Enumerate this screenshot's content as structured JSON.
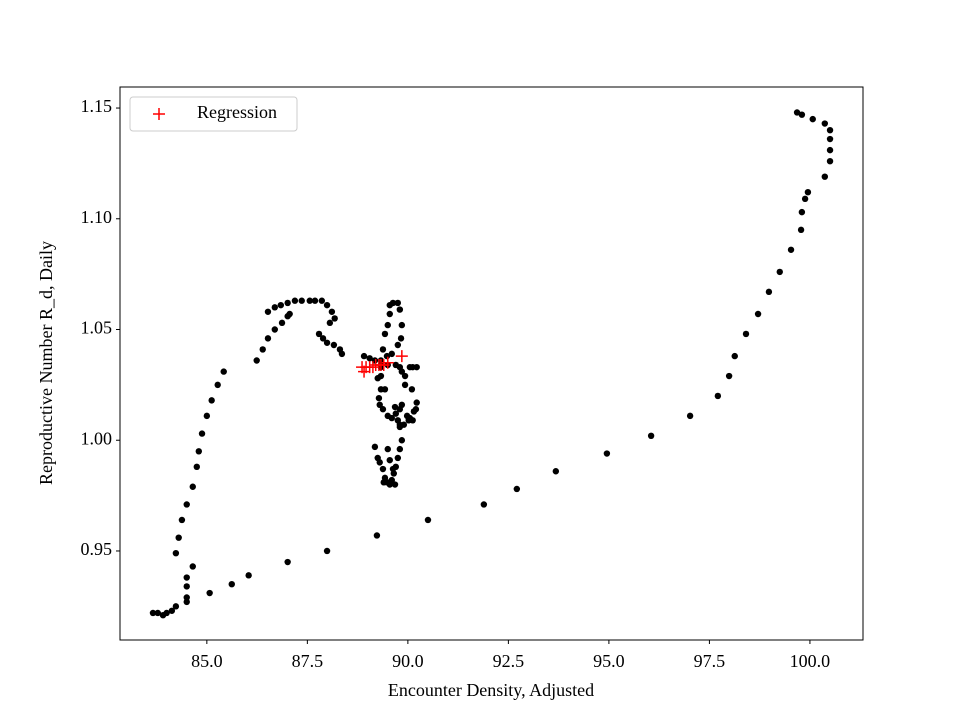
{
  "chart_data": {
    "type": "scatter",
    "xlabel": "Encounter Density, Adjusted",
    "ylabel": "Reproductive Number R_d, Daily",
    "xlim": [
      82.84,
      101.32
    ],
    "ylim": [
      0.9098,
      1.1595
    ],
    "xticks": [
      {
        "value": 85,
        "label": "85.0"
      },
      87.5,
      {
        "value": 90,
        "label": "90.0"
      },
      92.5,
      {
        "value": 95,
        "label": "95.0"
      },
      97.5,
      {
        "value": 100,
        "label": "100.0"
      }
    ],
    "yticks": [
      0.95,
      {
        "value": 1,
        "label": "1.00"
      },
      1.05,
      {
        "value": 1.1,
        "label": "1.10"
      },
      1.15
    ],
    "legend": "upper left",
    "series": [
      {
        "color": "#000000",
        "marker": "dot",
        "x": [
          83.66,
          83.78,
          83.91,
          84.0,
          84.13,
          84.23,
          84.5,
          84.5,
          84.5,
          84.5,
          84.65,
          85.07,
          85.62,
          86.04,
          87.01,
          87.99,
          89.23,
          90.5,
          91.89,
          92.71,
          93.68,
          94.95,
          96.05,
          97.02,
          97.71,
          97.99,
          98.13,
          98.41,
          98.71,
          98.98,
          99.25,
          99.53,
          99.78,
          99.8,
          99.88,
          99.95,
          100.37,
          100.5,
          100.5,
          100.5,
          100.5,
          100.37,
          100.07,
          99.8,
          99.68,
          84.23,
          84.3,
          84.38,
          84.5,
          84.65,
          84.75,
          84.8,
          84.88,
          85.0,
          85.12,
          85.27,
          85.42,
          86.24,
          86.39,
          86.52,
          86.69,
          86.87,
          87.01,
          87.06,
          86.52,
          86.69,
          86.84,
          87.01,
          87.19,
          87.36,
          87.56,
          87.69,
          87.86,
          87.99,
          88.11,
          88.18,
          88.06,
          87.79,
          87.89,
          87.99,
          88.16,
          88.31,
          88.36,
          88.91,
          89.05,
          89.18,
          89.33,
          89.48,
          89.6,
          89.75,
          89.83,
          89.85,
          89.8,
          89.75,
          89.63,
          89.55,
          89.55,
          89.5,
          89.43,
          89.38,
          89.33,
          89.25,
          89.33,
          89.28,
          89.3,
          89.38,
          89.5,
          89.6,
          89.7,
          89.8,
          89.85,
          89.98,
          90.05,
          90.12,
          90.2,
          90.22,
          90.1,
          89.93,
          89.85,
          89.8,
          89.7,
          89.5,
          89.33,
          89.33,
          89.43,
          89.68,
          89.75,
          89.8,
          89.85,
          89.8,
          89.75,
          89.7,
          89.65,
          89.6,
          89.55,
          89.48,
          89.43,
          89.38,
          89.3,
          89.25,
          89.18,
          89.5,
          89.55,
          89.63,
          89.4,
          89.68,
          89.8,
          89.9,
          90.02,
          90.15,
          89.93,
          90.05,
          90.12,
          90.22
        ],
        "values": [
          0.922,
          0.922,
          0.921,
          0.922,
          0.923,
          0.925,
          0.938,
          0.934,
          0.929,
          0.927,
          0.943,
          0.931,
          0.935,
          0.939,
          0.945,
          0.95,
          0.957,
          0.964,
          0.971,
          0.978,
          0.986,
          0.994,
          1.002,
          1.011,
          1.02,
          1.029,
          1.038,
          1.048,
          1.057,
          1.067,
          1.076,
          1.086,
          1.095,
          1.103,
          1.109,
          1.112,
          1.119,
          1.126,
          1.131,
          1.136,
          1.14,
          1.143,
          1.145,
          1.147,
          1.148,
          0.949,
          0.956,
          0.964,
          0.971,
          0.979,
          0.988,
          0.995,
          1.003,
          1.011,
          1.018,
          1.025,
          1.031,
          1.036,
          1.041,
          1.046,
          1.05,
          1.053,
          1.056,
          1.057,
          1.058,
          1.06,
          1.061,
          1.062,
          1.063,
          1.063,
          1.063,
          1.063,
          1.063,
          1.061,
          1.058,
          1.055,
          1.053,
          1.048,
          1.046,
          1.044,
          1.043,
          1.041,
          1.039,
          1.038,
          1.037,
          1.036,
          1.036,
          1.038,
          1.039,
          1.043,
          1.046,
          1.052,
          1.059,
          1.062,
          1.062,
          1.061,
          1.057,
          1.052,
          1.048,
          1.041,
          1.034,
          1.028,
          1.023,
          1.019,
          1.016,
          1.014,
          1.011,
          1.01,
          1.012,
          1.014,
          1.016,
          1.011,
          1.01,
          1.009,
          1.014,
          1.017,
          1.023,
          1.029,
          1.031,
          1.033,
          1.034,
          1.034,
          1.033,
          1.029,
          1.023,
          1.015,
          1.009,
          1.006,
          1.0,
          0.996,
          0.992,
          0.988,
          0.985,
          0.982,
          0.98,
          0.981,
          0.983,
          0.987,
          0.99,
          0.992,
          0.997,
          0.996,
          0.991,
          0.987,
          0.981,
          0.98,
          1.007,
          1.007,
          1.009,
          1.013,
          1.025,
          1.033,
          1.033,
          1.033
        ]
      },
      {
        "name": "Regression",
        "color": "#ff0000",
        "marker": "+",
        "x": [
          88.86,
          88.91,
          88.96,
          89.05,
          89.13,
          89.2,
          89.28,
          89.33,
          89.4,
          89.5,
          89.85
        ],
        "values": [
          1.033,
          1.031,
          1.033,
          1.033,
          1.033,
          1.034,
          1.034,
          1.034,
          1.034,
          1.035,
          1.038
        ]
      }
    ]
  }
}
